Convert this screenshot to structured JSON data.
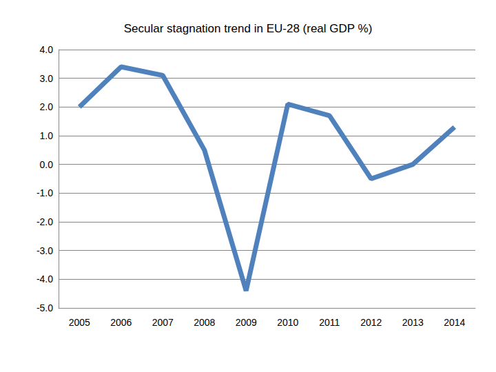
{
  "chart_data": {
    "type": "line",
    "title": "Secular stagnation trend in EU-28 (real GDP %)",
    "categories": [
      "2005",
      "2006",
      "2007",
      "2008",
      "2009",
      "2010",
      "2011",
      "2012",
      "2013",
      "2014"
    ],
    "values": [
      2.0,
      3.4,
      3.1,
      0.5,
      -4.4,
      2.1,
      1.7,
      -0.5,
      0.0,
      1.3
    ],
    "color": "#4f81bd",
    "marker": "none",
    "ylim": [
      -5,
      4
    ],
    "yticks": [
      {
        "value": -5,
        "label": "-5.0"
      },
      {
        "value": -4,
        "label": "-4.0"
      },
      {
        "value": -3,
        "label": "-3.0"
      },
      {
        "value": -2,
        "label": "-2.0"
      },
      {
        "value": -1,
        "label": "-1.0"
      },
      {
        "value": 0,
        "label": "0.0"
      },
      {
        "value": 1,
        "label": "1.0"
      },
      {
        "value": 2,
        "label": "2.0"
      },
      {
        "value": 3,
        "label": "3.0"
      },
      {
        "value": 4,
        "label": "4.0"
      }
    ],
    "grid": true
  }
}
